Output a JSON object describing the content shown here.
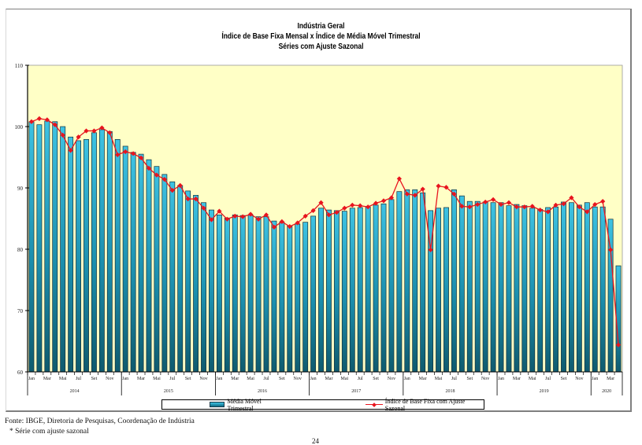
{
  "chart_data": {
    "type": "bar+line",
    "title": "Indústria Geral",
    "subtitle": "Índice de Base Fixa Mensal x Índice de Média Móvel Trimestral",
    "subtitle2": "Séries com Ajuste Sazonal",
    "xlabel": "",
    "ylabel": "",
    "ylim": [
      60,
      110
    ],
    "yticks": [
      "60",
      "70",
      "80",
      "90",
      "100",
      "110"
    ],
    "ytick_values": [
      60,
      70,
      80,
      90,
      100,
      110
    ],
    "month_labels": [
      "Jan",
      "Mar",
      "Mai",
      "Jul",
      "Set",
      "Nov"
    ],
    "years": [
      "2014",
      "2015",
      "2016",
      "2017",
      "2018",
      "2019",
      "2020"
    ],
    "year_month_counts": [
      12,
      12,
      12,
      12,
      12,
      12,
      4
    ],
    "grid": false,
    "plot_background": "#ffffc6",
    "legend_position": "bottom",
    "series": [
      {
        "name": "Média Móvel Trimestral",
        "kind": "bar",
        "color_top": "#3ec3e3",
        "color_bottom": "#0f5a6e",
        "values": [
          100.8,
          100.3,
          100.9,
          100.8,
          100.0,
          98.3,
          97.7,
          97.9,
          99.0,
          99.5,
          99.2,
          97.9,
          96.8,
          95.8,
          95.5,
          94.6,
          93.5,
          92.2,
          91.0,
          90.4,
          89.5,
          88.8,
          87.6,
          86.4,
          85.6,
          85.1,
          85.6,
          85.5,
          85.6,
          85.3,
          85.3,
          84.6,
          84.4,
          83.8,
          84.1,
          84.4,
          85.4,
          86.7,
          86.4,
          86.3,
          86.2,
          86.7,
          86.8,
          86.9,
          87.2,
          87.4,
          88.1,
          89.4,
          89.7,
          89.7,
          89.2,
          86.3,
          86.7,
          86.8,
          89.7,
          88.7,
          87.8,
          87.8,
          87.7,
          87.6,
          87.6,
          87.1,
          87.3,
          87.1,
          86.7,
          86.5,
          86.8,
          86.9,
          87.7,
          87.6,
          87.2,
          87.6,
          86.9,
          86.9,
          84.9,
          77.3
        ]
      },
      {
        "name": "Índice de Base Fixa com Ajuste Sazonal",
        "kind": "line",
        "color": "#e8141e",
        "values": [
          100.8,
          101.3,
          101.1,
          100.3,
          98.6,
          96.1,
          98.3,
          99.3,
          99.3,
          99.8,
          99.0,
          95.4,
          95.9,
          95.6,
          94.9,
          93.2,
          92.1,
          91.4,
          89.6,
          90.4,
          88.2,
          88.2,
          86.7,
          84.8,
          86.2,
          84.9,
          85.4,
          85.3,
          85.7,
          84.9,
          85.6,
          83.6,
          84.5,
          83.7,
          84.3,
          85.4,
          86.3,
          87.6,
          85.6,
          86.0,
          86.7,
          87.2,
          87.1,
          86.9,
          87.5,
          87.9,
          88.4,
          91.5,
          89.0,
          88.8,
          89.8,
          79.9,
          90.3,
          90.1,
          89.0,
          87.0,
          86.9,
          87.3,
          87.7,
          88.1,
          87.3,
          87.6,
          86.9,
          86.9,
          87.0,
          86.4,
          86.1,
          87.2,
          87.4,
          88.4,
          86.9,
          86.1,
          87.3,
          87.8,
          79.9,
          64.4
        ]
      }
    ]
  },
  "legend": {
    "bar_label": "Média Móvel Trimestral",
    "line_label": "Índice de Base Fixa com Ajuste Sazonal"
  },
  "footer": {
    "source": "Fonte: IBGE, Diretoria de Pesquisas, Coordenação de Indústria",
    "note": "* Série com ajuste sazonal"
  },
  "page_number": "24"
}
